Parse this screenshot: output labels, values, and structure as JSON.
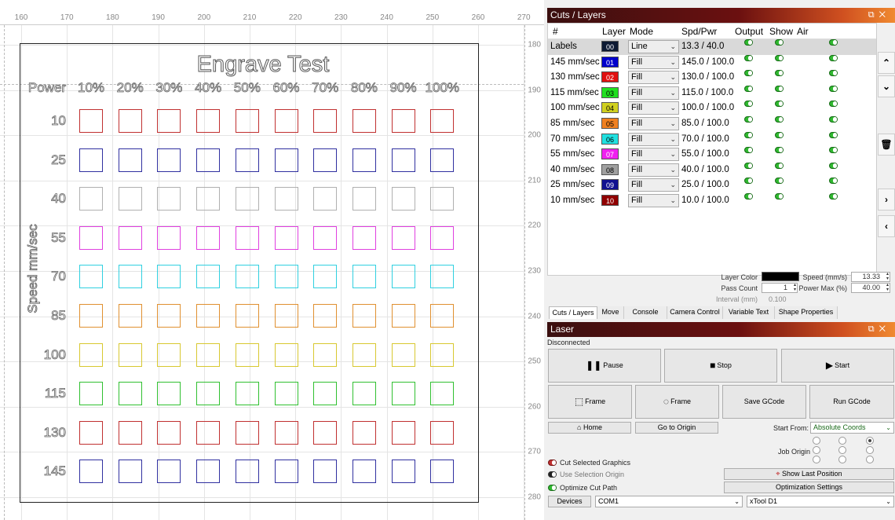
{
  "canvas": {
    "ruler_top": [
      "160",
      "170",
      "180",
      "190",
      "200",
      "210",
      "220",
      "230",
      "240",
      "250",
      "260",
      "270"
    ],
    "ruler_right": [
      "180",
      "190",
      "200",
      "210",
      "220",
      "230",
      "240",
      "250",
      "260",
      "270",
      "280"
    ],
    "title": "Engrave Test",
    "power_header": "Power",
    "power_labels": [
      "10%",
      "20%",
      "30%",
      "40%",
      "50%",
      "60%",
      "70%",
      "80%",
      "90%",
      "100%"
    ],
    "speed_axis": "Speed mm/sec",
    "speed_labels": [
      "10",
      "25",
      "40",
      "55",
      "70",
      "85",
      "100",
      "115",
      "130",
      "145"
    ],
    "row_colors": [
      "#c03030",
      "#3030a0",
      "#b0b0b0",
      "#e040e0",
      "#30d0e0",
      "#e09030",
      "#d8c830",
      "#30c030",
      "#c03030",
      "#3030a0"
    ]
  },
  "cuts": {
    "title": "Cuts / Layers",
    "headers": {
      "num": "#",
      "layer": "Layer",
      "mode": "Mode",
      "spd": "Spd/Pwr",
      "output": "Output",
      "show": "Show",
      "air": "Air"
    },
    "rows": [
      {
        "name": "Labels",
        "layer": "00",
        "color": "#0d1a33",
        "text": "#fff",
        "mode": "Line",
        "spd": "13.3 / 40.0"
      },
      {
        "name": "145 mm/sec",
        "layer": "01",
        "color": "#0000cc",
        "text": "#fff",
        "mode": "Fill",
        "spd": "145.0 / 100.0"
      },
      {
        "name": "130 mm/sec",
        "layer": "02",
        "color": "#e01010",
        "text": "#fff",
        "mode": "Fill",
        "spd": "130.0 / 100.0"
      },
      {
        "name": "115 mm/sec",
        "layer": "03",
        "color": "#20e020",
        "text": "#000",
        "mode": "Fill",
        "spd": "115.0 / 100.0"
      },
      {
        "name": "100 mm/sec",
        "layer": "04",
        "color": "#d0d020",
        "text": "#000",
        "mode": "Fill",
        "spd": "100.0 / 100.0"
      },
      {
        "name": "85 mm/sec",
        "layer": "05",
        "color": "#f08020",
        "text": "#000",
        "mode": "Fill",
        "spd": "85.0 / 100.0"
      },
      {
        "name": "70 mm/sec",
        "layer": "06",
        "color": "#20e0e0",
        "text": "#000",
        "mode": "Fill",
        "spd": "70.0 / 100.0"
      },
      {
        "name": "55 mm/sec",
        "layer": "07",
        "color": "#f020f0",
        "text": "#fff",
        "mode": "Fill",
        "spd": "55.0 / 100.0"
      },
      {
        "name": "40 mm/sec",
        "layer": "08",
        "color": "#a0a0a0",
        "text": "#000",
        "mode": "Fill",
        "spd": "40.0 / 100.0"
      },
      {
        "name": "25 mm/sec",
        "layer": "09",
        "color": "#101090",
        "text": "#fff",
        "mode": "Fill",
        "spd": "25.0 / 100.0"
      },
      {
        "name": "10 mm/sec",
        "layer": "10",
        "color": "#900000",
        "text": "#fff",
        "mode": "Fill",
        "spd": "10.0 / 100.0"
      }
    ],
    "side_icons": [
      "chevron-up-icon",
      "chevron-down-icon",
      "trash-icon",
      "chevron-right-icon",
      "chevron-left-icon"
    ],
    "props": {
      "layer_color_label": "Layer Color",
      "pass_count_label": "Pass Count",
      "pass_count": "1",
      "interval_label": "Interval (mm)",
      "interval": "0.100",
      "speed_label": "Speed (mm/s)",
      "speed": "13.33",
      "power_label": "Power Max (%)",
      "power": "40.00"
    },
    "tabs": [
      "Cuts / Layers",
      "Move",
      "Console",
      "Camera Control",
      "Variable Text",
      "Shape Properties"
    ]
  },
  "laser": {
    "title": "Laser",
    "status": "Disconnected",
    "pause": "Pause",
    "stop": "Stop",
    "start": "Start",
    "frame1": "Frame",
    "frame2": "Frame",
    "save_gcode": "Save GCode",
    "run_gcode": "Run GCode",
    "home": "Home",
    "go_origin": "Go to Origin",
    "start_from_label": "Start From:",
    "start_from": "Absolute Coords",
    "job_origin_label": "Job Origin",
    "cut_selected": "Cut Selected Graphics",
    "use_sel_origin": "Use Selection Origin",
    "show_last": "Show Last Position",
    "optimize_cut": "Optimize Cut Path",
    "opt_settings": "Optimization Settings",
    "devices": "Devices",
    "port": "COM1",
    "device": "xTool D1"
  }
}
